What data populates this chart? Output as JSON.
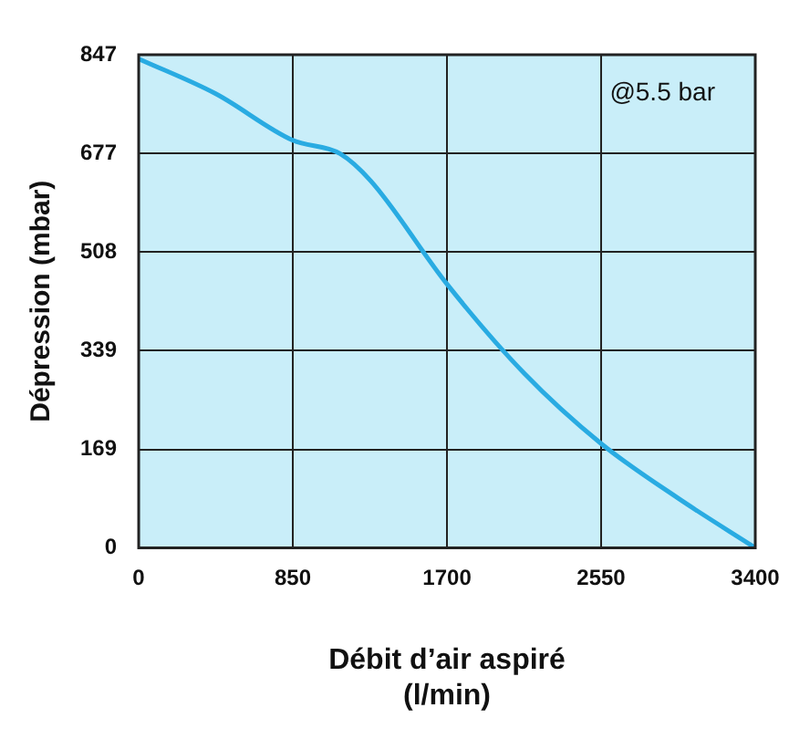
{
  "chart_data": {
    "type": "line",
    "xlabel": "Débit d’air aspiré (l/min)",
    "ylabel": "Dépression (mbar)",
    "annotations": [
      "@5.5 bar"
    ],
    "x": [
      0,
      425,
      850,
      1110,
      1280,
      1700,
      2125,
      2550,
      2975,
      3400
    ],
    "series": [
      {
        "color": "#29abe2",
        "values": [
          840,
          780,
          700,
          677,
          630,
          453,
          300,
          179,
          85,
          0
        ]
      }
    ],
    "xlim": [
      0,
      3400
    ],
    "ylim": [
      0,
      847
    ],
    "xticks": [
      0,
      850,
      1700,
      2550,
      3400
    ],
    "yticks": [
      0,
      169,
      339,
      508,
      677,
      847
    ],
    "grid": true,
    "legend": false,
    "marker": "none",
    "line_style": "solid"
  }
}
